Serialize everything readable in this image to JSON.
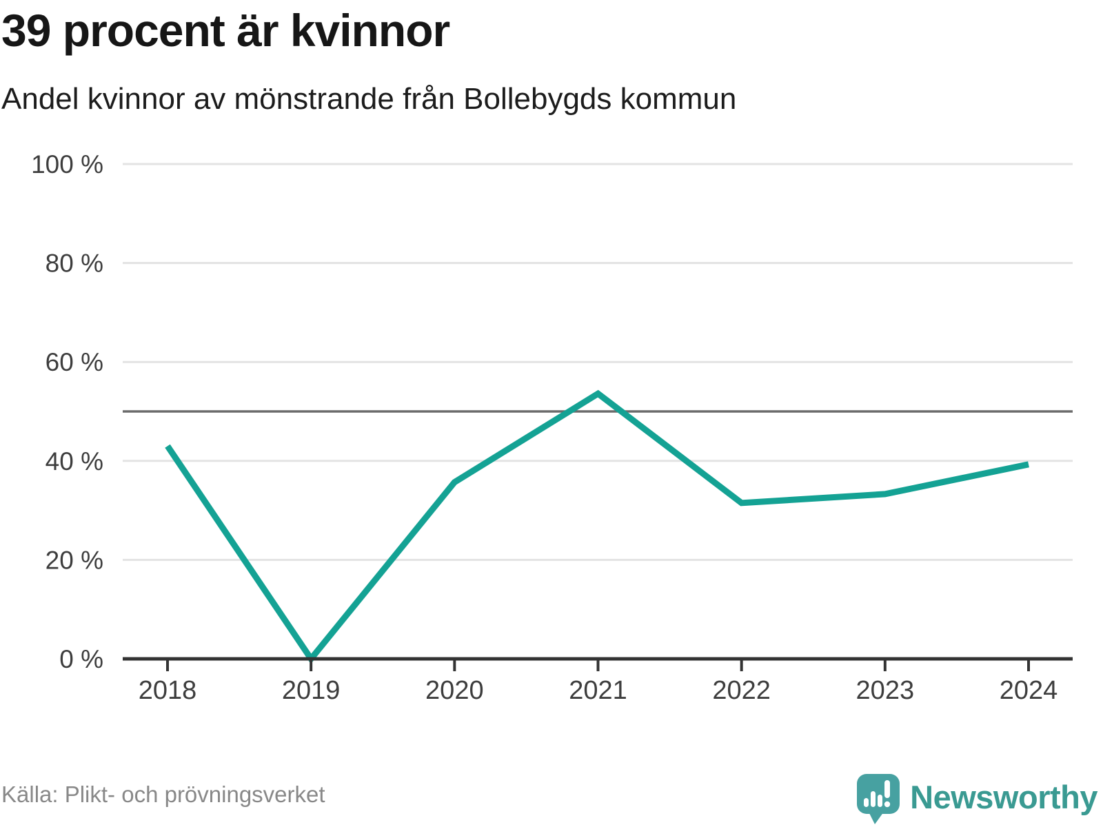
{
  "header": {
    "title": "39 procent är kvinnor",
    "subtitle": "Andel kvinnor av mönstrande från Bollebygds kommun"
  },
  "footer": {
    "source": "Källa: Plikt- och prövningsverket",
    "brand": "Newsworthy"
  },
  "colors": {
    "line": "#14a294",
    "grid": "#e3e3e3",
    "reference_line": "#6b6b6b",
    "axis": "#333333",
    "tick_label": "#3d3d3d",
    "title": "#161616",
    "source_text": "#888888",
    "brand_text": "#3a9a92",
    "brand_icon": "#47a1a1"
  },
  "chart_data": {
    "type": "line",
    "title": "39 procent är kvinnor",
    "subtitle": "Andel kvinnor av mönstrande från Bollebygds kommun",
    "x": [
      2018,
      2019,
      2020,
      2021,
      2022,
      2023,
      2024
    ],
    "xtick_labels": [
      "2018",
      "2019",
      "2020",
      "2021",
      "2022",
      "2023",
      "2024"
    ],
    "series": [
      {
        "name": "Andel kvinnor av mönstrande",
        "values": [
          43,
          0,
          35.7,
          53.6,
          31.5,
          33.3,
          39.3
        ]
      }
    ],
    "unit": "%",
    "ylim": [
      0,
      100
    ],
    "yticks": [
      0,
      20,
      40,
      60,
      80,
      100
    ],
    "ytick_labels": [
      "0 %",
      "20 %",
      "40 %",
      "60 %",
      "80 %",
      "100 %"
    ],
    "reference_line": 50,
    "grid": "horizontal",
    "legend": "none"
  }
}
